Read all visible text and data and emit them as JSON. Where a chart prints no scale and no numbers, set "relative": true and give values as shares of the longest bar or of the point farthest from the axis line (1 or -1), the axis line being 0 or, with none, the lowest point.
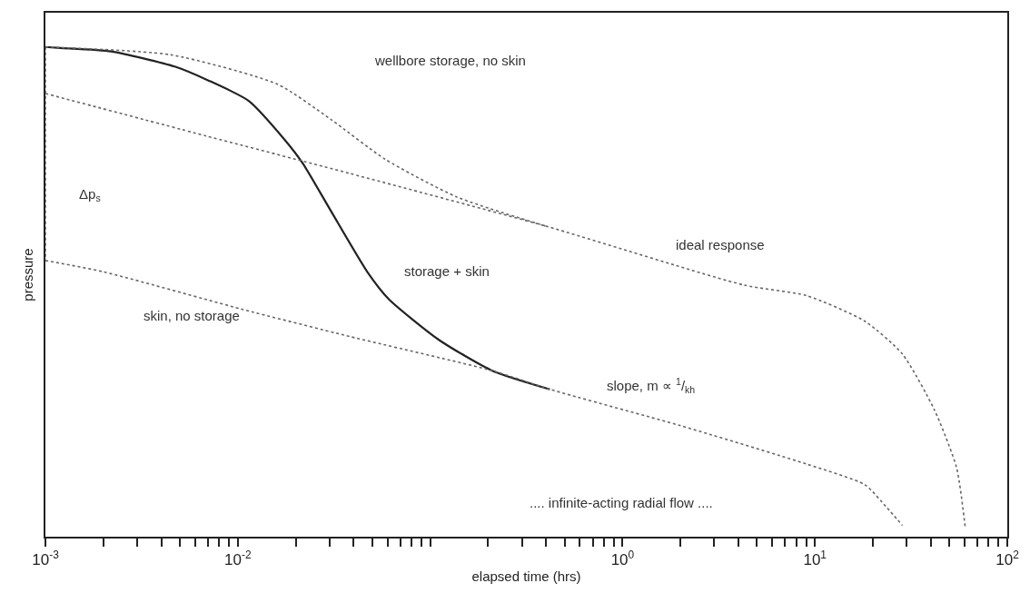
{
  "chart_data": {
    "type": "line",
    "relative": true,
    "xlabel": "elapsed time (hrs)",
    "ylabel": "pressure",
    "log": "x",
    "marker": "none",
    "xlim": [
      0.001,
      100
    ],
    "xticks": [
      {
        "value": 0.001,
        "label": "10$^{-3}$"
      },
      {
        "value": 0.002,
        "label": null
      },
      {
        "value": 0.003,
        "label": null
      },
      {
        "value": 0.004,
        "label": null
      },
      {
        "value": 0.005,
        "label": null
      },
      {
        "value": 0.006,
        "label": null
      },
      {
        "value": 0.007,
        "label": null
      },
      {
        "value": 0.008,
        "label": null
      },
      {
        "value": 0.009,
        "label": null
      },
      {
        "value": 0.01,
        "label": "10$^{-2}$"
      },
      {
        "value": 0.02,
        "label": null
      },
      {
        "value": 0.03,
        "label": null
      },
      {
        "value": 0.04,
        "label": null
      },
      {
        "value": 0.05,
        "label": null
      },
      {
        "value": 0.06,
        "label": null
      },
      {
        "value": 0.07,
        "label": null
      },
      {
        "value": 0.08,
        "label": null
      },
      {
        "value": 0.09,
        "label": null
      },
      {
        "value": 0.1,
        "label": null
      },
      {
        "value": 0.2,
        "label": null
      },
      {
        "value": 0.3,
        "label": null
      },
      {
        "value": 0.4,
        "label": null
      },
      {
        "value": 0.5,
        "label": null
      },
      {
        "value": 0.6,
        "label": null
      },
      {
        "value": 0.7,
        "label": null
      },
      {
        "value": 0.8,
        "label": null
      },
      {
        "value": 0.9,
        "label": null
      },
      {
        "value": 1,
        "label": "10$^{0}$"
      },
      {
        "value": 2,
        "label": null
      },
      {
        "value": 3,
        "label": null
      },
      {
        "value": 4,
        "label": null
      },
      {
        "value": 5,
        "label": null
      },
      {
        "value": 6,
        "label": null
      },
      {
        "value": 7,
        "label": null
      },
      {
        "value": 8,
        "label": null
      },
      {
        "value": 9,
        "label": null
      },
      {
        "value": 10,
        "label": "10$^{1}$"
      },
      {
        "value": 20,
        "label": null
      },
      {
        "value": 30,
        "label": null
      },
      {
        "value": 40,
        "label": null
      },
      {
        "value": 50,
        "label": null
      },
      {
        "value": 60,
        "label": null
      },
      {
        "value": 70,
        "label": null
      },
      {
        "value": 80,
        "label": null
      },
      {
        "value": 90,
        "label": null
      },
      {
        "value": 100,
        "label": "10$^{2}$"
      }
    ],
    "series": [
      {
        "color": "#222222",
        "line_style": "solid",
        "x": [
          0.001,
          0.0012,
          0.0022,
          0.0047,
          0.007,
          0.0114,
          0.0175,
          0.0218,
          0.0305,
          0.0471,
          0.061,
          0.111,
          0.21,
          0.419
        ],
        "values": [
          1.0,
          0.998,
          0.991,
          0.96,
          0.932,
          0.89,
          0.811,
          0.762,
          0.665,
          0.541,
          0.485,
          0.402,
          0.339,
          0.301
        ]
      },
      {
        "color": "#666666",
        "line_style": "dotted",
        "x": [
          0.001,
          0.002,
          0.0104,
          0.038,
          0.21,
          0.419,
          1.99,
          9.1,
          18.2,
          23.7,
          28.5
        ],
        "values": [
          0.564,
          0.541,
          0.465,
          0.409,
          0.339,
          0.301,
          0.227,
          0.148,
          0.106,
          0.059,
          0.023
        ]
      },
      {
        "color": "#666666",
        "line_style": "dotted",
        "x": [
          0.001,
          0.0069,
          0.038,
          0.401,
          4.26,
          9.1,
          18.2,
          28.5,
          41.8,
          54.5,
          60.4
        ],
        "values": [
          0.905,
          0.818,
          0.742,
          0.634,
          0.514,
          0.492,
          0.44,
          0.373,
          0.259,
          0.141,
          0.02
        ]
      },
      {
        "color": "#666666",
        "line_style": "dotted",
        "x": [
          0.001,
          0.0045,
          0.0161,
          0.0305,
          0.0582,
          0.137,
          0.401
        ],
        "values": [
          1.0,
          0.984,
          0.924,
          0.852,
          0.771,
          0.694,
          0.634
        ]
      },
      {
        "color": "#666666",
        "line_style": "dotted",
        "x": [
          0.001,
          0.001
        ],
        "values": [
          1.0,
          0.564
        ]
      }
    ],
    "annotations": [
      "wellbore storage, no skin",
      "ideal response",
      "storage + skin",
      "skin, no storage",
      "slope, m ∝ $^{1}$/$_{kh}$",
      "Δp$_{s}$",
      ".... infinite-acting radial flow ...."
    ]
  }
}
